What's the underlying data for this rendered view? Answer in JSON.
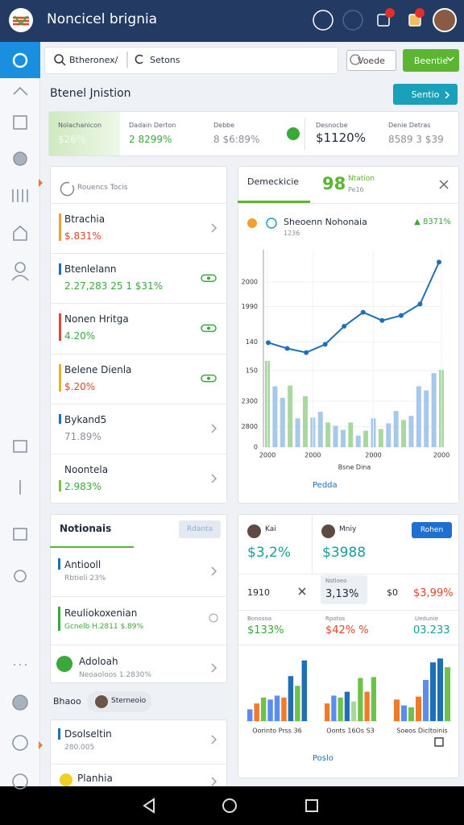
{
  "app_bar": {
    "title": "Noncicel brignia"
  },
  "toolbar": {
    "search": "Btheronex/",
    "filter": "Setons",
    "secondary_button": "Voede",
    "primary_button": "Beentie"
  },
  "page": {
    "heading": "Btenel Jnistion",
    "action": "Sentio"
  },
  "stats": [
    {
      "label": "Nolachanicon",
      "value": "$26%"
    },
    {
      "label": "Dadain Derton",
      "value": "2 8299%"
    },
    {
      "label": "Debbe",
      "value": "8 $6:89%"
    },
    {
      "label": "Desnocbe",
      "value": "$1120%"
    },
    {
      "label": "Denie Detras",
      "value": "8589 3 $39"
    }
  ],
  "list_card": {
    "title": "Rouencs Tocis",
    "rows": [
      {
        "title": "Btrachia",
        "value": "$.831%"
      },
      {
        "title": "Btenlelann",
        "value": "2.27,283 25 1 $31%"
      },
      {
        "title": "Nonen Hritga",
        "value": "4.20%"
      },
      {
        "title": "Belene Dienla",
        "value": "$.20%"
      },
      {
        "title": "Bykand5",
        "value": "71.89%"
      },
      {
        "title": "Noontela",
        "value": "2.983%"
      }
    ]
  },
  "chart_card": {
    "tab": "Demeckicie",
    "metric": "98",
    "metric_label": "Ntation",
    "metric_sub": "Pe16",
    "title": "Sheoenn Nohonaia",
    "subtitle": "1236",
    "change": "▲ 8371%",
    "link": "Pedda"
  },
  "chart_data": {
    "type": "combo",
    "x_label": "Bsne Dina",
    "x_tick_labels": [
      "2000",
      "2000",
      "2000",
      "2000"
    ],
    "ylim": [
      0,
      2400
    ],
    "yticks": [
      0,
      {
        "value": 250,
        "label": "2800"
      },
      {
        "value": 560,
        "label": "2300"
      },
      {
        "value": 930,
        "label": "150"
      },
      {
        "value": 1280,
        "label": "140"
      },
      {
        "value": 1710,
        "label": "1990"
      },
      {
        "value": 2010,
        "label": "2000"
      }
    ],
    "grid": true,
    "series": [
      {
        "type": "bar",
        "colors": [
          "#a8d8a0",
          "#a6c8ec",
          "#a6c8ec",
          "#a8d8a0",
          "#a6c8ec",
          "#a8d8a0",
          "#a6c8ec",
          "#a6c8ec",
          "#a8d8a0",
          "#a6c8ec",
          "#a6c8ec",
          "#a8d8a0",
          "#a6c8ec",
          "#a8d8a0",
          "#a6c8ec",
          "#a8d8a0",
          "#a6c8ec",
          "#a6c8ec",
          "#a8d8a0",
          "#a6c8ec",
          "#a6c8ec",
          "#a6c8ec",
          "#a6c8ec",
          "#a8d8a0"
        ],
        "values": [
          1050,
          740,
          600,
          750,
          350,
          620,
          360,
          430,
          300,
          260,
          210,
          300,
          140,
          200,
          350,
          220,
          290,
          440,
          330,
          380,
          740,
          690,
          900,
          940
        ]
      },
      {
        "type": "line",
        "color": "#1f6fb8",
        "values": [
          1270,
          1200,
          1150,
          1250,
          1470,
          1640,
          1540,
          1600,
          1740,
          2250
        ]
      }
    ]
  },
  "notifications_card": {
    "title": "Notionais",
    "button": "Rdanta",
    "rows": [
      {
        "title": "Antiooll",
        "detail": "Rbtieli 23%"
      },
      {
        "title": "Reuliokoxenian",
        "detail": "Gcnelb H.2811 $.89%"
      },
      {
        "title": "Adoloah",
        "detail": "Neoaoloos 1.2830%"
      }
    ]
  },
  "section": {
    "label": "Bhaoo",
    "chip": "Sterneoio"
  },
  "recent_card": {
    "rows": [
      {
        "title": "Dsolseltin",
        "detail": "280.005"
      },
      {
        "title": "Planhia"
      }
    ]
  },
  "summary_card": {
    "people": [
      {
        "name": "Kai",
        "value": "$3,2%"
      },
      {
        "name": "Mniy",
        "value": "$3988"
      }
    ],
    "button": "Rohen",
    "row": {
      "label": "1910",
      "box_label": "Nstloeo",
      "box_value": "3,13%",
      "amount": "$0",
      "change": "$3,99%"
    },
    "metrics": [
      {
        "label": "Bonosoa",
        "value": "$133%"
      },
      {
        "label": "Rpotos",
        "value": "$42% %"
      },
      {
        "label": "Uedunie",
        "value": "03.233"
      }
    ],
    "mini_charts": {
      "ylim": [
        0,
        70
      ],
      "groups": [
        {
          "label": "Oorinto Prss 36",
          "values": [
            12,
            18,
            24,
            22,
            26,
            24,
            46,
            36,
            62
          ],
          "colors": [
            "#5b8def",
            "#f07a2a",
            "#6cc24a",
            "#5b8def",
            "#5b8def",
            "#f07a2a",
            "#1f6fb8",
            "#6cc24a",
            "#1f6fb8"
          ]
        },
        {
          "label": "Oonts 16Os S3",
          "values": [
            18,
            26,
            24,
            30,
            20,
            44,
            30,
            45
          ],
          "colors": [
            "#f07a2a",
            "#5b8def",
            "#6cc24a",
            "#1f6fb8",
            "#a8d8a0",
            "#6cc24a",
            "#f07a2a",
            "#6cc24a"
          ]
        },
        {
          "label": "Soeos Dicltoinis",
          "values": [
            22,
            16,
            14,
            25,
            42,
            60,
            64,
            55
          ],
          "colors": [
            "#f07a2a",
            "#5b8def",
            "#6cc24a",
            "#f07a2a",
            "#5b8def",
            "#1f6fb8",
            "#1f6fb8",
            "#6cc24a"
          ]
        }
      ]
    },
    "link": "Poslo"
  }
}
